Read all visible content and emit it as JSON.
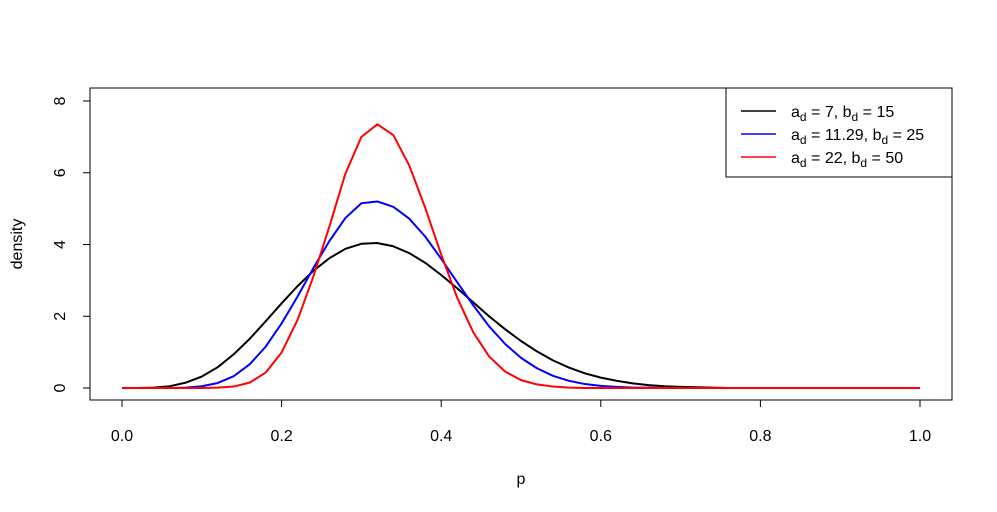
{
  "chart_data": {
    "type": "line",
    "xlabel": "p",
    "ylabel": "density",
    "xlim": [
      0,
      1
    ],
    "ylim": [
      0,
      8
    ],
    "x_ticks": [
      "0.0",
      "0.2",
      "0.4",
      "0.6",
      "0.8",
      "1.0"
    ],
    "y_ticks": [
      "0",
      "2",
      "4",
      "6",
      "8"
    ],
    "legend_position": "top-right",
    "grid": false,
    "x": [
      0.0,
      0.02,
      0.04,
      0.06,
      0.08,
      0.1,
      0.12,
      0.14,
      0.16,
      0.18,
      0.2,
      0.22,
      0.24,
      0.26,
      0.28,
      0.3,
      0.32,
      0.34,
      0.36,
      0.38,
      0.4,
      0.42,
      0.44,
      0.46,
      0.48,
      0.5,
      0.52,
      0.54,
      0.56,
      0.58,
      0.6,
      0.62,
      0.64,
      0.66,
      0.68,
      0.7,
      0.72,
      0.74,
      0.76,
      0.78,
      0.8,
      0.82,
      0.84,
      0.86,
      0.88,
      0.9,
      0.92,
      0.94,
      0.96,
      0.98,
      1.0
    ],
    "series": [
      {
        "name_main": "a",
        "name_sub": "d",
        "name_mid": " = 7, b",
        "name_sub2": "d",
        "name_end": " = 15",
        "color": "#000000",
        "values": [
          0.0,
          0.0,
          0.01,
          0.05,
          0.15,
          0.32,
          0.58,
          0.94,
          1.37,
          1.86,
          2.36,
          2.84,
          3.27,
          3.62,
          3.88,
          4.02,
          4.04,
          3.95,
          3.76,
          3.49,
          3.15,
          2.78,
          2.39,
          2.0,
          1.64,
          1.31,
          1.02,
          0.77,
          0.57,
          0.41,
          0.29,
          0.2,
          0.13,
          0.08,
          0.05,
          0.03,
          0.02,
          0.01,
          0.0,
          0.0,
          0.0,
          0.0,
          0.0,
          0.0,
          0.0,
          0.0,
          0.0,
          0.0,
          0.0,
          0.0,
          0.0
        ]
      },
      {
        "name_main": "a",
        "name_sub": "d",
        "name_mid": " = 11.29, b",
        "name_sub2": "d",
        "name_end": " = 25",
        "color": "#0000ff",
        "values": [
          0.0,
          0.0,
          0.0,
          0.0,
          0.01,
          0.05,
          0.14,
          0.33,
          0.66,
          1.15,
          1.8,
          2.55,
          3.35,
          4.1,
          4.74,
          5.15,
          5.2,
          5.05,
          4.72,
          4.22,
          3.6,
          2.95,
          2.31,
          1.72,
          1.23,
          0.84,
          0.55,
          0.34,
          0.2,
          0.11,
          0.06,
          0.03,
          0.01,
          0.01,
          0.0,
          0.0,
          0.0,
          0.0,
          0.0,
          0.0,
          0.0,
          0.0,
          0.0,
          0.0,
          0.0,
          0.0,
          0.0,
          0.0,
          0.0,
          0.0,
          0.0
        ]
      },
      {
        "name_main": "a",
        "name_sub": "d",
        "name_mid": " = 22, b",
        "name_sub2": "d",
        "name_end": " = 50",
        "color": "#ff0000",
        "values": [
          0.0,
          0.0,
          0.0,
          0.0,
          0.0,
          0.0,
          0.01,
          0.04,
          0.15,
          0.43,
          0.99,
          1.9,
          3.12,
          4.51,
          5.98,
          7.0,
          7.35,
          7.05,
          6.2,
          5.02,
          3.72,
          2.52,
          1.56,
          0.88,
          0.46,
          0.22,
          0.1,
          0.04,
          0.01,
          0.0,
          0.0,
          0.0,
          0.0,
          0.0,
          0.0,
          0.0,
          0.0,
          0.0,
          0.0,
          0.0,
          0.0,
          0.0,
          0.0,
          0.0,
          0.0,
          0.0,
          0.0,
          0.0,
          0.0,
          0.0,
          0.0
        ]
      }
    ]
  }
}
